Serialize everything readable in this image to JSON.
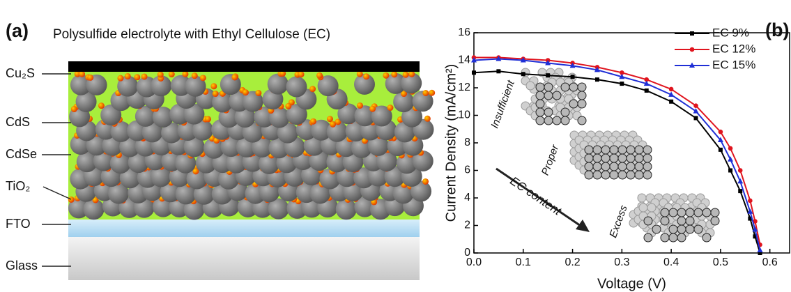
{
  "panel_a": {
    "label": "(a)",
    "title": "Polysulfide electrolyte with Ethyl Cellulose (EC)",
    "layers": [
      "Cu₂S",
      "CdS",
      "CdSe",
      "TiO₂",
      "FTO",
      "Glass"
    ]
  },
  "chart_data": {
    "type": "line",
    "panel_label": "(b)",
    "x_label": "Voltage (V)",
    "y_label": "Current Density (mA/cm²)",
    "x": [
      0,
      0.05,
      0.1,
      0.15,
      0.2,
      0.25,
      0.3,
      0.35,
      0.4,
      0.45,
      0.5,
      0.52,
      0.54,
      0.56,
      0.57,
      0.58
    ],
    "series": [
      {
        "name": "EC 9%",
        "color": "#000000",
        "marker": "square",
        "values": [
          13.1,
          13.2,
          13.0,
          12.9,
          12.8,
          12.6,
          12.3,
          11.8,
          11.0,
          9.8,
          7.5,
          6.0,
          4.5,
          2.5,
          1.2,
          0
        ]
      },
      {
        "name": "EC 12%",
        "color": "#e0141e",
        "marker": "circle",
        "values": [
          14.2,
          14.2,
          14.1,
          14.0,
          13.8,
          13.5,
          13.1,
          12.6,
          11.9,
          10.7,
          8.8,
          7.6,
          6.0,
          3.8,
          2.3,
          0.6
        ]
      },
      {
        "name": "EC 15%",
        "color": "#1f2fd6",
        "marker": "triangle",
        "values": [
          14.0,
          14.1,
          14.0,
          13.8,
          13.6,
          13.3,
          12.8,
          12.3,
          11.5,
          10.3,
          8.2,
          6.8,
          5.2,
          3.0,
          1.7,
          0.2
        ]
      }
    ],
    "xlim": [
      0,
      0.64
    ],
    "ylim": [
      0,
      16
    ],
    "xticks": [
      {
        "value": 0,
        "label": "0.0"
      },
      0.1,
      0.2,
      0.3,
      0.4,
      0.5,
      0.6
    ],
    "yticks": [
      0,
      2,
      4,
      6,
      8,
      10,
      12,
      14,
      16
    ],
    "insets": [
      "Insufficient",
      "Proper",
      "Excess"
    ],
    "arrow_label": "EC content"
  }
}
